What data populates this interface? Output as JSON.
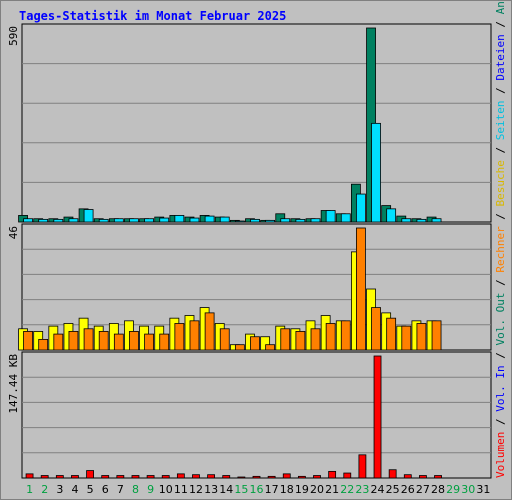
{
  "title": "Tages-Statistik im Monat Februar 2025",
  "chart_data": [
    {
      "type": "bar",
      "name": "hits-pages-files",
      "scale_label": "590",
      "ylim": [
        0,
        590
      ],
      "categories": [
        "1",
        "2",
        "3",
        "4",
        "5",
        "6",
        "7",
        "8",
        "9",
        "10",
        "11",
        "12",
        "13",
        "14",
        "15",
        "16",
        "17",
        "18",
        "19",
        "20",
        "21",
        "22",
        "23",
        "24",
        "25",
        "26",
        "27",
        "28",
        "29",
        "30",
        "31"
      ],
      "series": [
        {
          "name": "Anfragen",
          "color": "#008060",
          "values": [
            20,
            10,
            10,
            15,
            40,
            10,
            10,
            10,
            10,
            15,
            20,
            15,
            20,
            15,
            5,
            10,
            5,
            25,
            10,
            10,
            35,
            25,
            115,
            590,
            50,
            18,
            10,
            15,
            0,
            0,
            0
          ]
        },
        {
          "name": "Dateien",
          "color": "#00e0ff",
          "values": [
            10,
            8,
            8,
            10,
            38,
            8,
            10,
            10,
            10,
            12,
            20,
            12,
            18,
            15,
            3,
            8,
            5,
            10,
            8,
            10,
            35,
            25,
            85,
            300,
            40,
            10,
            8,
            10,
            0,
            0,
            0
          ]
        }
      ]
    },
    {
      "type": "bar",
      "name": "visits-sites",
      "scale_label": "46",
      "ylim": [
        0,
        46
      ],
      "categories": [
        "1",
        "2",
        "3",
        "4",
        "5",
        "6",
        "7",
        "8",
        "9",
        "10",
        "11",
        "12",
        "13",
        "14",
        "15",
        "16",
        "17",
        "18",
        "19",
        "20",
        "21",
        "22",
        "23",
        "24",
        "25",
        "26",
        "27",
        "28",
        "29",
        "30",
        "31"
      ],
      "series": [
        {
          "name": "Besuche",
          "color": "#ffff00",
          "values": [
            8,
            7,
            9,
            10,
            12,
            9,
            10,
            11,
            9,
            9,
            12,
            13,
            16,
            10,
            2,
            6,
            5,
            9,
            8,
            11,
            13,
            11,
            37,
            23,
            14,
            9,
            11,
            11,
            0,
            0,
            0
          ]
        },
        {
          "name": "Rechner",
          "color": "#ff8000",
          "values": [
            7,
            4,
            6,
            7,
            8,
            7,
            6,
            7,
            6,
            6,
            10,
            11,
            14,
            8,
            2,
            5,
            2,
            8,
            7,
            8,
            10,
            11,
            46,
            16,
            12,
            9,
            10,
            11,
            0,
            0,
            0
          ]
        }
      ]
    },
    {
      "type": "bar",
      "name": "volume",
      "scale_label": "147.44 KB",
      "ylim": [
        0,
        147.44
      ],
      "categories": [
        "1",
        "2",
        "3",
        "4",
        "5",
        "6",
        "7",
        "8",
        "9",
        "10",
        "11",
        "12",
        "13",
        "14",
        "15",
        "16",
        "17",
        "18",
        "19",
        "20",
        "21",
        "22",
        "23",
        "24",
        "25",
        "26",
        "27",
        "28",
        "29",
        "30",
        "31"
      ],
      "series": [
        {
          "name": "Volumen",
          "color": "#ff0000",
          "values": [
            5,
            3,
            3,
            3,
            9,
            3,
            3,
            3,
            3,
            3,
            5,
            4,
            4,
            3,
            1,
            2,
            2,
            5,
            2,
            3,
            8,
            6,
            28,
            147.44,
            10,
            4,
            3,
            3,
            0,
            0,
            0
          ]
        }
      ]
    }
  ],
  "right_label": [
    {
      "text": "Volumen",
      "color": "#ff0000"
    },
    {
      "text": " / ",
      "color": "#000000"
    },
    {
      "text": "Vol. In",
      "color": "#0000ff"
    },
    {
      "text": " / ",
      "color": "#000000"
    },
    {
      "text": "Vol. Out",
      "color": "#008060"
    },
    {
      "text": " / ",
      "color": "#000000"
    },
    {
      "text": "Rechner",
      "color": "#ff8000"
    },
    {
      "text": " / ",
      "color": "#000000"
    },
    {
      "text": "Besuche",
      "color": "#d8b800"
    },
    {
      "text": " / ",
      "color": "#000000"
    },
    {
      "text": "Seiten",
      "color": "#00c0e0"
    },
    {
      "text": " / ",
      "color": "#000000"
    },
    {
      "text": "Dateien",
      "color": "#0000ff"
    },
    {
      "text": " / ",
      "color": "#000000"
    },
    {
      "text": "Anfragen",
      "color": "#008060"
    }
  ],
  "weekend_days": [
    "1",
    "2",
    "8",
    "9",
    "15",
    "16",
    "22",
    "23",
    "29",
    "30"
  ],
  "day_label_colors": {
    "weekday": "#000000",
    "weekend": "#00a040"
  }
}
